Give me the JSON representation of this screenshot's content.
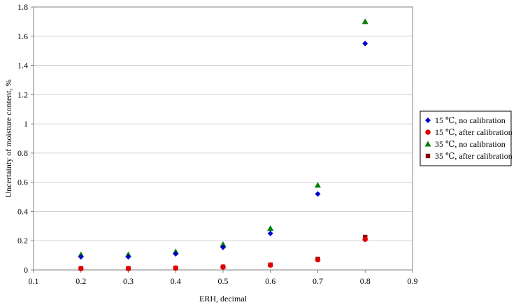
{
  "chart_data": {
    "type": "scatter",
    "title": "",
    "xlabel": "ERH, decimal",
    "ylabel": "Uncertainty of moisture content, %",
    "xlim": [
      0.1,
      0.9
    ],
    "ylim": [
      0,
      1.8
    ],
    "x_ticks": [
      "0.1",
      "0.2",
      "0.3",
      "0.4",
      "0.5",
      "0.6",
      "0.7",
      "0.8",
      "0.9"
    ],
    "y_ticks": [
      "0",
      "0.2",
      "0.4",
      "0.6",
      "0.8",
      "1",
      "1.2",
      "1.4",
      "1.6",
      "1.8"
    ],
    "grid": "horizontal",
    "legend_position": "right",
    "series": [
      {
        "name": "15 ℃, no calibration",
        "marker": "diamond",
        "color": "#0000cc",
        "x": [
          0.2,
          0.3,
          0.4,
          0.5,
          0.6,
          0.7,
          0.8
        ],
        "y": [
          0.09,
          0.09,
          0.11,
          0.155,
          0.25,
          0.52,
          1.55
        ]
      },
      {
        "name": "15 ℃, after calibration",
        "marker": "circle",
        "color": "#e00000",
        "x": [
          0.2,
          0.3,
          0.4,
          0.5,
          0.6,
          0.7,
          0.8
        ],
        "y": [
          0.01,
          0.01,
          0.013,
          0.02,
          0.033,
          0.07,
          0.21
        ]
      },
      {
        "name": "35 ℃, no calibration",
        "marker": "triangle",
        "color": "#008000",
        "x": [
          0.2,
          0.3,
          0.4,
          0.5,
          0.6,
          0.7,
          0.8
        ],
        "y": [
          0.105,
          0.105,
          0.125,
          0.175,
          0.285,
          0.58,
          1.7
        ]
      },
      {
        "name": "35 ℃, after calibration",
        "marker": "square",
        "color": "#800000",
        "x": [
          0.2,
          0.3,
          0.4,
          0.5,
          0.6,
          0.7,
          0.8
        ],
        "y": [
          0.011,
          0.011,
          0.014,
          0.021,
          0.035,
          0.075,
          0.225
        ]
      }
    ]
  }
}
